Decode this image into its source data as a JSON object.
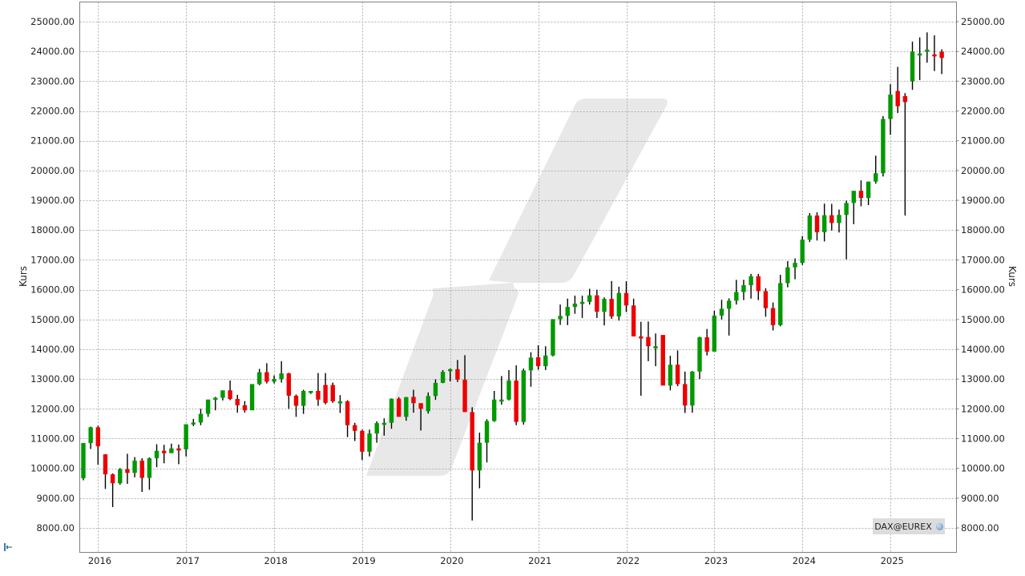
{
  "chart_data": {
    "type": "candlestick",
    "title": "",
    "instrument": "DAX@EUREX",
    "interval": "monthly",
    "xlabel": "",
    "ylabel": "Kurs",
    "ylabel_right": "Kurs",
    "ylim": [
      7300,
      25700
    ],
    "y_ticks": [
      8000,
      9000,
      10000,
      11000,
      12000,
      13000,
      14000,
      15000,
      16000,
      17000,
      18000,
      19000,
      20000,
      21000,
      22000,
      23000,
      24000,
      25000
    ],
    "y_tick_labels": [
      "8000.00",
      "9000.00",
      "10000.00",
      "11000.00",
      "12000.00",
      "13000.00",
      "14000.00",
      "15000.00",
      "16000.00",
      "17000.00",
      "18000.00",
      "19000.00",
      "20000.00",
      "21000.00",
      "22000.00",
      "23000.00",
      "24000.00",
      "25000.00"
    ],
    "x_ticks": [
      "2016",
      "2017",
      "2018",
      "2019",
      "2020",
      "2021",
      "2022",
      "2023",
      "2024",
      "2025"
    ],
    "grid": true,
    "colors": {
      "up": "#009900",
      "down": "#ee0000",
      "wick": "#000000",
      "grid": "#b0b0b0",
      "frame": "#808080",
      "watermark": "#e8e8e8"
    },
    "start": "2015-10",
    "ohlc": [
      [
        9670,
        10850,
        9600,
        10850
      ],
      [
        10850,
        11400,
        10650,
        11380
      ],
      [
        11380,
        11430,
        10120,
        10740
      ],
      [
        10470,
        10480,
        9310,
        9800
      ],
      [
        9800,
        9830,
        8700,
        9500
      ],
      [
        9500,
        10010,
        9450,
        9970
      ],
      [
        9970,
        10490,
        9480,
        9850
      ],
      [
        9850,
        10380,
        9700,
        10260
      ],
      [
        10260,
        10340,
        9210,
        9680
      ],
      [
        9680,
        10370,
        9280,
        10340
      ],
      [
        10340,
        10810,
        10040,
        10590
      ],
      [
        10590,
        10790,
        10170,
        10510
      ],
      [
        10510,
        10830,
        10580,
        10670
      ],
      [
        10670,
        10800,
        10140,
        10640
      ],
      [
        10640,
        11480,
        10400,
        11480
      ],
      [
        11480,
        11660,
        11420,
        11540
      ],
      [
        11540,
        12000,
        11450,
        11830
      ],
      [
        11830,
        12310,
        11730,
        12310
      ],
      [
        12310,
        12400,
        11950,
        12370
      ],
      [
        12370,
        12570,
        12280,
        12620
      ],
      [
        12620,
        12950,
        12290,
        12330
      ],
      [
        12330,
        12470,
        11870,
        12120
      ],
      [
        12120,
        12260,
        11870,
        11950
      ],
      [
        11950,
        12830,
        12030,
        12830
      ],
      [
        12830,
        13340,
        12790,
        13230
      ],
      [
        13230,
        13530,
        12850,
        12910
      ],
      [
        12910,
        13120,
        12850,
        13000
      ],
      [
        13000,
        13600,
        12880,
        13190
      ],
      [
        13190,
        13210,
        12000,
        12440
      ],
      [
        12440,
        12480,
        11730,
        12100
      ],
      [
        12100,
        12640,
        11830,
        12600
      ],
      [
        12600,
        12560,
        12500,
        12600
      ],
      [
        12600,
        13200,
        12100,
        12310
      ],
      [
        12800,
        13200,
        12150,
        12200
      ],
      [
        12800,
        12880,
        12200,
        12250
      ],
      [
        12250,
        12460,
        11860,
        12250
      ],
      [
        12250,
        12290,
        11050,
        11450
      ],
      [
        11450,
        11530,
        10920,
        11260
      ],
      [
        11260,
        11300,
        10280,
        10560
      ],
      [
        10560,
        11300,
        10400,
        11170
      ],
      [
        11170,
        11580,
        10860,
        11520
      ],
      [
        11520,
        11680,
        11100,
        11530
      ],
      [
        11530,
        12350,
        11330,
        12340
      ],
      [
        12340,
        12390,
        11850,
        11730
      ],
      [
        11730,
        12400,
        11600,
        12390
      ],
      [
        12400,
        12640,
        11870,
        12190
      ],
      [
        12190,
        12150,
        11270,
        12000
      ],
      [
        11920,
        12550,
        11840,
        12430
      ],
      [
        12430,
        12990,
        12300,
        12870
      ],
      [
        12870,
        13300,
        12860,
        13240
      ],
      [
        13300,
        13350,
        12920,
        13330
      ],
      [
        13330,
        13640,
        12900,
        12980
      ],
      [
        12980,
        13800,
        12450,
        11890
      ],
      [
        11890,
        12050,
        8250,
        9930
      ],
      [
        9930,
        11200,
        9330,
        10860
      ],
      [
        10860,
        11650,
        10200,
        11590
      ],
      [
        11590,
        12600,
        11560,
        12310
      ],
      [
        12310,
        13100,
        12140,
        12310
      ],
      [
        12310,
        13300,
        12280,
        12950
      ],
      [
        12950,
        13460,
        11450,
        11560
      ],
      [
        11560,
        13350,
        11470,
        13290
      ],
      [
        13290,
        13900,
        12740,
        13720
      ],
      [
        13730,
        14130,
        13310,
        13430
      ],
      [
        13430,
        14100,
        13300,
        13790
      ],
      [
        13790,
        15010,
        13760,
        15010
      ],
      [
        15010,
        15500,
        14820,
        15120
      ],
      [
        15120,
        15700,
        14810,
        15420
      ],
      [
        15420,
        15800,
        15190,
        15530
      ],
      [
        15530,
        15800,
        15050,
        15590
      ],
      [
        15590,
        16030,
        15500,
        15810
      ],
      [
        15810,
        16000,
        15050,
        15260
      ],
      [
        15260,
        15740,
        14800,
        15690
      ],
      [
        15690,
        16290,
        15020,
        15100
      ],
      [
        15100,
        16100,
        14960,
        15890
      ],
      [
        15890,
        16280,
        15250,
        15470
      ],
      [
        15470,
        15700,
        14600,
        14430
      ],
      [
        14430,
        14920,
        12440,
        14410
      ],
      [
        14410,
        14930,
        13600,
        14100
      ],
      [
        14100,
        14530,
        13430,
        14100
      ],
      [
        14480,
        14440,
        13330,
        12780
      ],
      [
        12780,
        13780,
        12620,
        13480
      ],
      [
        13480,
        13960,
        12760,
        12830
      ],
      [
        12830,
        13250,
        11860,
        12110
      ],
      [
        12110,
        13270,
        11870,
        13250
      ],
      [
        13250,
        14420,
        13000,
        14400
      ],
      [
        14400,
        14680,
        13790,
        13920
      ],
      [
        13920,
        15290,
        13980,
        15130
      ],
      [
        15130,
        15660,
        15000,
        15360
      ],
      [
        15360,
        15710,
        14460,
        15630
      ],
      [
        15630,
        16330,
        15500,
        15920
      ],
      [
        15920,
        16330,
        15650,
        16150
      ],
      [
        16150,
        16530,
        15700,
        16450
      ],
      [
        16450,
        16530,
        15650,
        15950
      ],
      [
        15950,
        16050,
        15090,
        15380
      ],
      [
        15380,
        15570,
        14630,
        14810
      ],
      [
        14810,
        16500,
        14770,
        16220
      ],
      [
        16220,
        16960,
        16080,
        16750
      ],
      [
        16750,
        17050,
        16350,
        16900
      ],
      [
        16900,
        17800,
        16830,
        17680
      ],
      [
        17680,
        18570,
        17600,
        18490
      ],
      [
        18490,
        18600,
        17650,
        17930
      ],
      [
        17930,
        18890,
        17620,
        18500
      ],
      [
        18500,
        18880,
        17990,
        18240
      ],
      [
        18240,
        18690,
        17920,
        18510
      ],
      [
        18510,
        18990,
        17020,
        18910
      ],
      [
        18910,
        19300,
        18200,
        19320
      ],
      [
        19320,
        19670,
        18800,
        19080
      ],
      [
        19080,
        19630,
        18840,
        19630
      ],
      [
        19630,
        20500,
        19560,
        19910
      ],
      [
        19910,
        21830,
        19800,
        21730
      ],
      [
        21730,
        22900,
        21200,
        22550
      ],
      [
        22670,
        23480,
        21930,
        22160
      ],
      [
        22500,
        22600,
        18490,
        22300
      ],
      [
        23000,
        24330,
        22710,
        23990
      ],
      [
        23900,
        24470,
        23040,
        23930
      ],
      [
        23990,
        24640,
        23620,
        24060
      ],
      [
        23900,
        24540,
        23340,
        23850
      ],
      [
        23990,
        24070,
        23240,
        23780
      ]
    ]
  },
  "axes": {
    "left_title": "Kurs",
    "right_title": "Kurs"
  },
  "badge": {
    "label": "DAX@EUREX",
    "icon": "globe-icon"
  },
  "toolbar": {
    "corner_icon": "chart-tool-icon"
  }
}
